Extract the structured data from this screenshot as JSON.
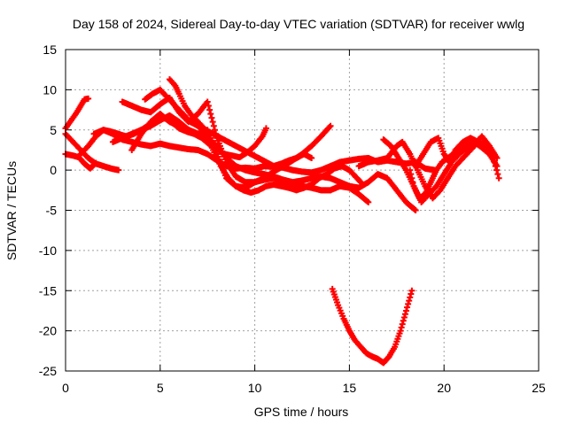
{
  "chart_data": {
    "type": "scatter",
    "title": "Day 158 of 2024, Sidereal Day-to-day VTEC variation (SDTVAR) for receiver wwlg",
    "xlabel": "GPS time / hours",
    "ylabel": "SDTVAR / TECUs",
    "xlim": [
      0,
      25
    ],
    "ylim": [
      -25,
      15
    ],
    "xticks": [
      "0",
      "5",
      "10",
      "15",
      "20",
      "25"
    ],
    "yticks": [
      "-25",
      "-20",
      "-15",
      "-10",
      "-5",
      "0",
      "5",
      "10",
      "15"
    ],
    "grid": true,
    "marker": "+",
    "color": "#ff0000",
    "series": [
      {
        "x": [
          0.0,
          0.3,
          0.6,
          0.8,
          1.0,
          1.2
        ],
        "y": [
          5.2,
          6.2,
          7.2,
          8.0,
          8.8,
          8.9
        ]
      },
      {
        "x": [
          0.0,
          0.4,
          0.8,
          1.2,
          1.6,
          2.0,
          2.4,
          2.8
        ],
        "y": [
          4.5,
          3.5,
          2.5,
          1.5,
          0.8,
          0.5,
          0.2,
          0.0
        ]
      },
      {
        "x": [
          0.0,
          0.4,
          0.7,
          1.0,
          1.3,
          1.6
        ],
        "y": [
          2.0,
          1.8,
          1.6,
          0.8,
          0.2,
          0.9
        ]
      },
      {
        "x": [
          0.8,
          1.2,
          1.6,
          2.0,
          2.4,
          2.8,
          3.2,
          3.6,
          4.0,
          4.4,
          4.8,
          5.2,
          5.6,
          6.0,
          6.4,
          6.8,
          7.2,
          7.6,
          8.0,
          8.4,
          8.8,
          9.2,
          9.6,
          10.0,
          10.4,
          10.6
        ],
        "y": [
          2.0,
          3.0,
          4.2,
          5.0,
          4.8,
          4.5,
          4.2,
          4.5,
          5.0,
          5.6,
          6.2,
          6.5,
          6.0,
          5.2,
          4.8,
          4.5,
          4.0,
          3.2,
          2.6,
          2.0,
          1.8,
          1.6,
          2.2,
          3.0,
          4.2,
          5.2
        ]
      },
      {
        "x": [
          1.5,
          2.0,
          2.5,
          3.0,
          3.5,
          4.0,
          4.5,
          5.0,
          5.5,
          6.0,
          6.5,
          7.0,
          7.5,
          8.0,
          8.5,
          9.0,
          9.5,
          10.0,
          10.5,
          11.0,
          11.5,
          12.0,
          12.5,
          13.0,
          13.5,
          14.0,
          14.5,
          15.0,
          15.5,
          16.0,
          16.5,
          17.0,
          17.5,
          18.0,
          18.5,
          19.0,
          19.5
        ],
        "y": [
          4.5,
          5.0,
          4.5,
          3.8,
          3.5,
          3.2,
          3.0,
          3.3,
          3.0,
          2.8,
          2.6,
          2.5,
          2.0,
          1.2,
          0.5,
          0.2,
          0.3,
          0.2,
          0.5,
          0.4,
          0.3,
          0.0,
          -0.2,
          -0.3,
          0.0,
          0.5,
          1.0,
          1.2,
          1.4,
          1.5,
          1.0,
          1.2,
          1.0,
          0.8,
          1.0,
          0.2,
          0.0
        ]
      },
      {
        "x": [
          2.5,
          3.0,
          3.5,
          4.0,
          4.5,
          5.0,
          5.5,
          6.0,
          6.5,
          7.0,
          7.5,
          8.0,
          8.5,
          9.0,
          9.5,
          10.0,
          10.5,
          11.0,
          11.5,
          12.0,
          12.5,
          13.0,
          13.5,
          14.0,
          14.5,
          15.0,
          15.5,
          16.0,
          16.5,
          17.0,
          17.5,
          18.0,
          18.5
        ],
        "y": [
          3.5,
          4.0,
          4.5,
          5.0,
          5.5,
          6.2,
          6.8,
          6.0,
          5.0,
          4.5,
          4.0,
          3.0,
          1.5,
          0.5,
          0.0,
          -0.3,
          -0.5,
          -0.8,
          -1.2,
          -1.5,
          -1.3,
          -1.0,
          -0.8,
          -1.0,
          -1.5,
          -2.0,
          -2.2,
          -1.5,
          -0.5,
          -1.0,
          -2.5,
          -4.0,
          -5.0
        ]
      },
      {
        "x": [
          3.0,
          3.5,
          4.0,
          4.5,
          5.0,
          5.5,
          6.0,
          6.5,
          7.0,
          7.5,
          8.0,
          8.5,
          9.0,
          9.5,
          10.0,
          10.5,
          11.0,
          11.5,
          12.0,
          12.5,
          13.0,
          13.5,
          14.0
        ],
        "y": [
          8.5,
          8.0,
          7.5,
          7.2,
          8.2,
          9.0,
          7.2,
          6.0,
          7.0,
          8.5,
          4.0,
          1.0,
          -0.8,
          -1.5,
          -1.5,
          -1.0,
          -0.2,
          0.5,
          1.2,
          2.0,
          3.0,
          4.2,
          5.5
        ]
      },
      {
        "x": [
          3.5,
          4.0,
          4.5,
          5.0,
          5.5,
          6.0,
          6.5,
          7.0,
          7.5,
          8.0,
          8.5,
          9.0,
          9.5,
          10.0,
          10.5,
          11.0,
          11.5,
          12.0,
          12.5,
          13.0,
          13.5,
          14.0,
          14.5,
          15.0,
          15.5,
          16.0
        ],
        "y": [
          2.5,
          4.5,
          6.0,
          7.0,
          6.0,
          5.5,
          5.0,
          4.5,
          5.0,
          2.0,
          -1.0,
          -2.0,
          -2.2,
          -1.5,
          -1.2,
          -1.0,
          -1.5,
          -1.8,
          -2.0,
          -2.2,
          -2.5,
          -2.5,
          -2.0,
          -2.2,
          -3.0,
          -4.0
        ]
      },
      {
        "x": [
          4.2,
          4.6,
          5.0,
          5.4,
          5.8,
          6.2,
          6.6,
          7.0,
          7.4,
          7.8,
          8.2,
          8.6,
          9.0,
          9.4,
          9.8,
          10.2,
          10.6,
          11.0,
          11.4,
          11.8,
          12.2,
          12.6,
          13.0,
          13.4,
          13.8,
          14.2,
          14.6,
          15.0,
          15.4,
          15.6
        ],
        "y": [
          8.8,
          9.5,
          10.0,
          9.0,
          8.0,
          7.0,
          6.0,
          5.5,
          4.5,
          2.5,
          0.5,
          -1.0,
          -2.0,
          -2.5,
          -2.8,
          -2.5,
          -2.0,
          -1.8,
          -2.0,
          -2.2,
          -2.5,
          -2.2,
          -1.8,
          -1.0,
          -0.5,
          0.2,
          0.5,
          0.0,
          -1.0,
          -1.5
        ]
      },
      {
        "x": [
          5.5,
          5.8,
          6.0,
          6.3,
          6.6,
          7.0,
          7.4,
          7.8,
          8.2,
          8.6,
          9.0,
          9.4,
          9.8,
          10.2,
          10.6,
          11.0,
          11.4,
          11.8,
          12.2,
          12.6,
          13.0
        ],
        "y": [
          11.3,
          10.5,
          9.5,
          8.0,
          7.0,
          6.0,
          5.0,
          4.5,
          4.0,
          3.5,
          3.0,
          2.5,
          2.0,
          1.5,
          1.0,
          0.5,
          0.8,
          1.2,
          1.5,
          2.0,
          1.5
        ]
      },
      {
        "x": [
          15.5,
          16.0,
          16.5,
          17.0,
          17.5,
          17.8,
          18.2,
          18.6,
          19.0,
          19.4,
          19.8,
          20.2,
          20.6,
          21.0,
          21.4,
          21.8,
          22.2,
          22.6,
          22.9
        ],
        "y": [
          0.5,
          1.0,
          1.2,
          1.5,
          3.0,
          3.5,
          2.0,
          0.0,
          -2.0,
          -3.5,
          -2.5,
          -1.0,
          0.5,
          1.5,
          2.5,
          3.5,
          3.0,
          1.5,
          -1.0
        ]
      },
      {
        "x": [
          16.8,
          17.2,
          17.6,
          18.0,
          18.4,
          18.8,
          19.2,
          19.6,
          20.0,
          20.4,
          20.8,
          21.2,
          21.6,
          22.0,
          22.4,
          22.8
        ],
        "y": [
          3.8,
          3.0,
          1.5,
          0.0,
          -2.0,
          -4.0,
          -3.0,
          -2.0,
          -0.5,
          1.0,
          2.0,
          2.8,
          3.2,
          4.2,
          3.0,
          1.5
        ]
      },
      {
        "x": [
          18.2,
          18.4,
          18.7,
          19.0,
          19.3,
          19.6,
          19.9,
          20.2,
          20.5,
          20.8,
          21.2,
          21.6,
          22.0,
          22.4,
          22.8
        ],
        "y": [
          0.0,
          -2.0,
          -3.5,
          -3.0,
          -1.5,
          0.0,
          1.0,
          1.5,
          2.0,
          2.5,
          3.0,
          3.5,
          2.8,
          2.0,
          0.5
        ]
      },
      {
        "x": [
          18.5,
          18.9,
          19.3,
          19.7,
          20.0,
          20.3,
          20.6,
          21.0,
          21.4,
          21.8,
          22.2,
          22.6
        ],
        "y": [
          0.5,
          2.0,
          3.5,
          4.0,
          2.0,
          1.0,
          2.5,
          3.5,
          4.0,
          3.5,
          3.0,
          2.0
        ]
      },
      {
        "x": [
          14.1,
          14.4,
          14.7,
          15.0,
          15.3,
          15.6,
          15.9,
          16.2,
          16.5,
          16.8,
          17.1,
          17.4,
          17.7,
          18.0,
          18.3
        ],
        "y": [
          -14.8,
          -16.8,
          -18.5,
          -20.0,
          -21.2,
          -22.0,
          -22.8,
          -23.2,
          -23.5,
          -24.0,
          -23.2,
          -22.0,
          -20.0,
          -17.5,
          -15.0
        ]
      }
    ]
  }
}
